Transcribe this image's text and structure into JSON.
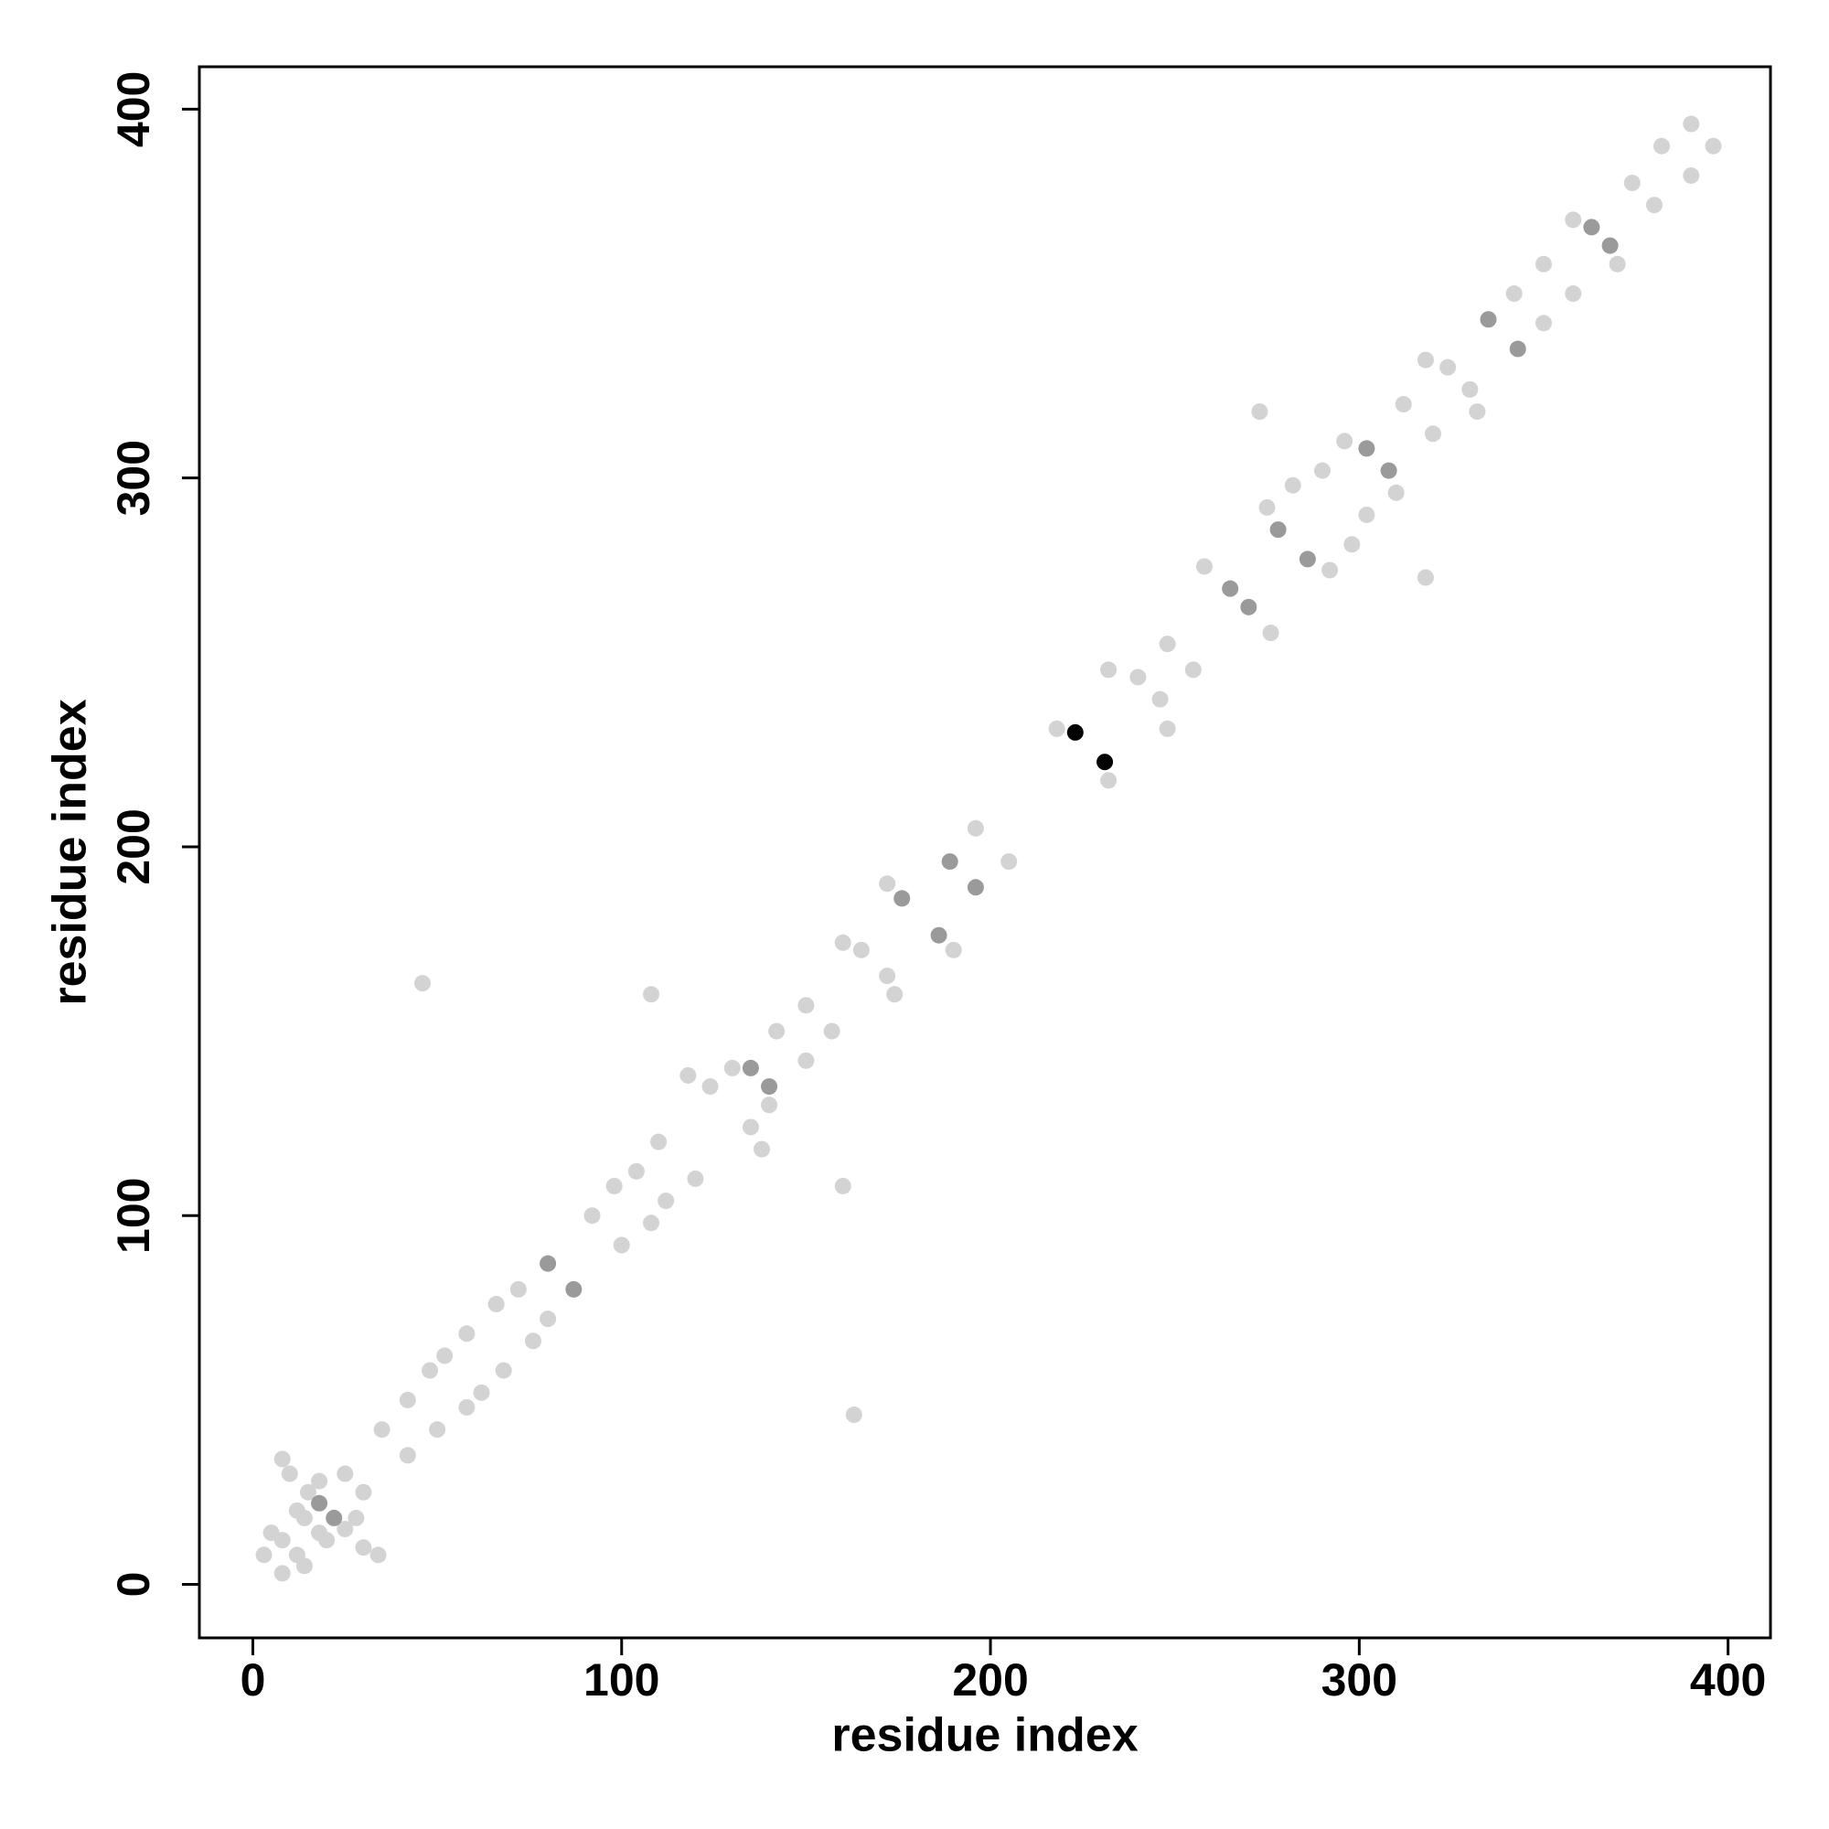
{
  "chart_data": {
    "type": "scatter",
    "x_label": "residue index",
    "y_label": "residue index",
    "xlim": [
      -14.5,
      411.5
    ],
    "ylim": [
      -14.5,
      411.5
    ],
    "xticks": [
      0,
      100,
      200,
      300,
      400
    ],
    "yticks": [
      0,
      100,
      200,
      300,
      400
    ],
    "grid": false,
    "series": [
      {
        "color": "#d3d3d3",
        "x": [
          3,
          5,
          8,
          10,
          12,
          15,
          18,
          25,
          14,
          8,
          35,
          42,
          48,
          52,
          58,
          66,
          72,
          92,
          98,
          104,
          110,
          118,
          124,
          130,
          142,
          150,
          160,
          165,
          172,
          196,
          218,
          232,
          240,
          248,
          258,
          275,
          282,
          290,
          296,
          312,
          318,
          324,
          342,
          350,
          358,
          374,
          382,
          390,
          46,
          108,
          273,
          8,
          14,
          34,
          30,
          20,
          25,
          28,
          30,
          18,
          12,
          42,
          50,
          58,
          62,
          68,
          76,
          80,
          100,
          108,
          112,
          120,
          138,
          135,
          140,
          150,
          157,
          174,
          172,
          190,
          205,
          232,
          248,
          246,
          255,
          276,
          292,
          298,
          302,
          310,
          320,
          332,
          330,
          350,
          358,
          370,
          380,
          390,
          396,
          163,
          160,
          318
        ],
        "y": [
          8,
          14,
          34,
          30,
          20,
          25,
          28,
          30,
          18,
          12,
          42,
          50,
          58,
          62,
          68,
          76,
          80,
          100,
          108,
          112,
          120,
          138,
          135,
          140,
          150,
          157,
          174,
          172,
          190,
          205,
          232,
          248,
          246,
          255,
          276,
          292,
          298,
          302,
          310,
          320,
          332,
          330,
          350,
          358,
          370,
          380,
          390,
          396,
          163,
          160,
          318,
          3,
          5,
          8,
          10,
          12,
          15,
          18,
          25,
          14,
          8,
          35,
          42,
          48,
          52,
          58,
          66,
          72,
          92,
          98,
          104,
          110,
          118,
          124,
          130,
          142,
          150,
          160,
          165,
          172,
          196,
          218,
          232,
          240,
          248,
          258,
          275,
          282,
          290,
          296,
          312,
          318,
          324,
          342,
          350,
          358,
          374,
          382,
          390,
          46,
          108,
          273
        ]
      },
      {
        "color": "#9a9a9a",
        "x": [
          80,
          87,
          189,
          196,
          176,
          186,
          265,
          270,
          302,
          308,
          335,
          343,
          363,
          368,
          18,
          22,
          135,
          140,
          278,
          286
        ],
        "y": [
          87,
          80,
          196,
          189,
          186,
          176,
          270,
          265,
          308,
          302,
          343,
          335,
          368,
          363,
          22,
          18,
          140,
          135,
          286,
          278
        ]
      },
      {
        "color": "#000000",
        "x": [
          223,
          231
        ],
        "y": [
          231,
          223
        ]
      }
    ]
  }
}
